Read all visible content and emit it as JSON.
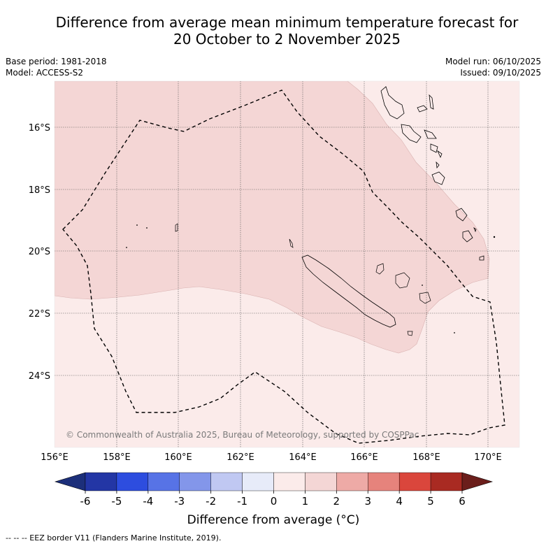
{
  "title_line1": "Difference from average mean minimum temperature forecast for",
  "title_line2": "20 October to 2 November 2025",
  "base_period": "Base period: 1981-2018",
  "model": "Model: ACCESS-S2",
  "model_run": "Model run: 06/10/2025",
  "issued": "Issued: 09/10/2025",
  "copyright": "© Commonwealth of Australia 2025, Bureau of Meteorology, supported by COSPPac",
  "footer": "--  --  -- EEZ border V11 (Flanders Marine Institute, 2019).",
  "colorbar_label": "Difference from average (°C)",
  "colors": {
    "anomaly_0_1": "#fbebea",
    "anomaly_1_2": "#f4d6d5",
    "land_outline": "#000000"
  },
  "chart_data": {
    "type": "map",
    "lon_range": [
      156,
      171
    ],
    "lat_range": [
      -26.3,
      -14.8
    ],
    "x_ticks": [
      "156°E",
      "158°E",
      "160°E",
      "162°E",
      "164°E",
      "166°E",
      "168°E",
      "170°E"
    ],
    "y_ticks": [
      "16°S",
      "18°S",
      "20°S",
      "22°S",
      "24°S"
    ],
    "colorbar": {
      "ticks": [
        "-6",
        "-5",
        "-4",
        "-3",
        "-2",
        "-1",
        "0",
        "1",
        "2",
        "3",
        "4",
        "5",
        "6"
      ],
      "colors": [
        "#1c2f7a",
        "#2336a5",
        "#2d4ddf",
        "#5773e6",
        "#8396ea",
        "#c0c8f2",
        "#e7ebf9",
        "#fbebea",
        "#f4d6d5",
        "#eeaaa6",
        "#e6837c",
        "#da463c",
        "#a92a22",
        "#6b1e1b"
      ]
    },
    "regions": [
      {
        "range": "0 to 1 °C",
        "color": "#fbebea"
      },
      {
        "range": "1 to 2 °C",
        "color": "#f4d6d5"
      }
    ]
  }
}
